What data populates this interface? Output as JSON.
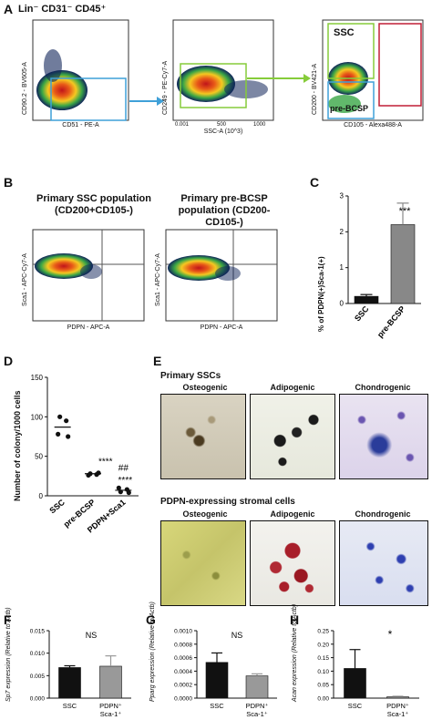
{
  "panel_A": {
    "label": "A",
    "title": "Lin⁻ CD31⁻ CD45⁺",
    "plots": [
      {
        "ylabel": "CD90.2 - BV605-A",
        "xlabel": "CD51 - PE-A"
      },
      {
        "ylabel": "CD249 - PE-Cy7-A",
        "xlabel": "SSC-A (10^3)"
      },
      {
        "ylabel": "CD200 - BV421-A",
        "xlabel": "CD105 - Alexa488-A",
        "gate_top": "SSC",
        "gate_bottom": "pre-BCSP"
      }
    ],
    "x_ticks_middle": [
      "0.001",
      "500",
      "1000"
    ]
  },
  "panel_B": {
    "label": "B",
    "titles": [
      "Primary SSC population (CD200+CD105-)",
      "Primary pre-BCSP population (CD200-CD105-)"
    ],
    "ylabel": "Sca1 - APC-Cy7-A",
    "xlabel": "PDPN - APC-A"
  },
  "panel_C": {
    "label": "C",
    "ylabel": "% of PDPN(+)Sca-1(+)",
    "significance": "***",
    "chart_data": {
      "type": "bar",
      "categories": [
        "SSC",
        "pre-BCSP"
      ],
      "values": [
        0.2,
        2.2
      ],
      "errors": [
        0.05,
        0.6
      ],
      "ylim": [
        0,
        3
      ],
      "yticks": [
        "0",
        "1",
        "2",
        "3"
      ],
      "colors": [
        "#111111",
        "#888888"
      ]
    }
  },
  "panel_D": {
    "label": "D",
    "ylabel": "Number of colony/1000 cells",
    "annotations": [
      "****",
      "##",
      "****"
    ],
    "chart_data": {
      "type": "scatter",
      "categories": [
        "SSC",
        "pre-BCSP",
        "PDPN+Sca1"
      ],
      "means": [
        87,
        28,
        7
      ],
      "points": [
        [
          100,
          95,
          78,
          75
        ],
        [
          28,
          27,
          26,
          29
        ],
        [
          5,
          8,
          10,
          4
        ]
      ],
      "ylim": [
        0,
        150
      ],
      "yticks": [
        "0",
        "50",
        "100",
        "150"
      ]
    }
  },
  "panel_E": {
    "label": "E",
    "sections": [
      {
        "title": "Primary SSCs",
        "columns": [
          "Osteogenic",
          "Adipogenic",
          "Chondrogenic"
        ]
      },
      {
        "title": "PDPN-expressing stromal cells",
        "columns": [
          "Osteogenic",
          "Adipogenic",
          "Chondrogenic"
        ]
      }
    ]
  },
  "panel_F": {
    "label": "F",
    "ylabel": "Sp7 expression (Relative to Actb)",
    "significance": "NS",
    "chart_data": {
      "type": "bar",
      "categories": [
        "SSC",
        "PDPN⁺ Sca-1⁺"
      ],
      "values": [
        0.0068,
        0.0071
      ],
      "errors": [
        0.0004,
        0.0023
      ],
      "ylim": [
        0,
        0.015
      ],
      "yticks": [
        "0.000",
        "0.005",
        "0.010",
        "0.015"
      ],
      "colors": [
        "#111111",
        "#999999"
      ]
    }
  },
  "panel_G": {
    "label": "G",
    "ylabel": "Pparg expression (Relative to Actb)",
    "significance": "NS",
    "chart_data": {
      "type": "bar",
      "categories": [
        "SSC",
        "PDPN⁺ Sca-1⁺"
      ],
      "values": [
        0.00053,
        0.00033
      ],
      "errors": [
        0.00014,
        3e-05
      ],
      "ylim": [
        0,
        0.001
      ],
      "yticks": [
        "0.0000",
        "0.0002",
        "0.0004",
        "0.0006",
        "0.0008",
        "0.0010"
      ],
      "colors": [
        "#111111",
        "#999999"
      ]
    }
  },
  "panel_H": {
    "label": "H",
    "ylabel": "Acan expression (Relative to Actb)",
    "significance": "*",
    "chart_data": {
      "type": "bar",
      "categories": [
        "SSC",
        "PDPN⁺ Sca-1⁺"
      ],
      "values": [
        0.11,
        0.005
      ],
      "errors": [
        0.07,
        0.002
      ],
      "ylim": [
        0,
        0.25
      ],
      "yticks": [
        "0.00",
        "0.05",
        "0.10",
        "0.15",
        "0.20",
        "0.25"
      ],
      "colors": [
        "#111111",
        "#999999"
      ]
    }
  }
}
